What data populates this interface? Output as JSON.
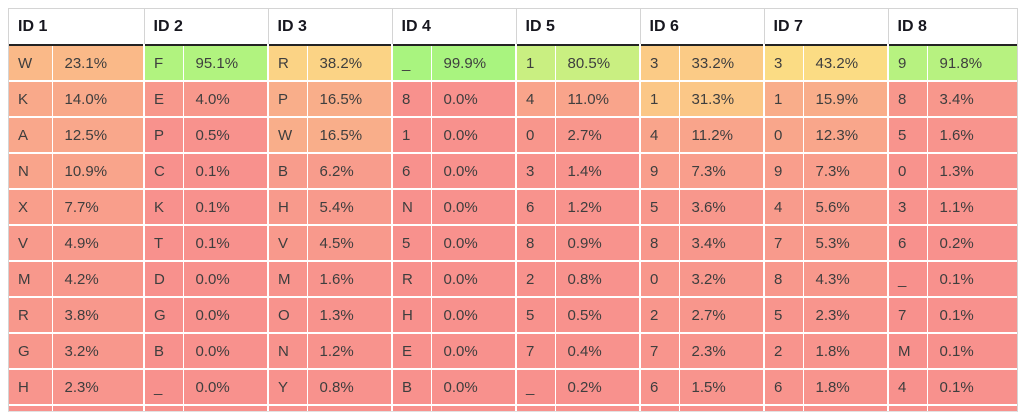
{
  "chart_data": {
    "type": "heatmap",
    "title": "",
    "layout": "8 column groups (character + probability), 10 ranked rows each, descending; 11th row clipped at bottom edge",
    "columns": [
      {
        "header": "ID 1",
        "cells": [
          {
            "char": "W",
            "pct": "23.1%"
          },
          {
            "char": "K",
            "pct": "14.0%"
          },
          {
            "char": "A",
            "pct": "12.5%"
          },
          {
            "char": "N",
            "pct": "10.9%"
          },
          {
            "char": "X",
            "pct": "7.7%"
          },
          {
            "char": "V",
            "pct": "4.9%"
          },
          {
            "char": "M",
            "pct": "4.2%"
          },
          {
            "char": "R",
            "pct": "3.8%"
          },
          {
            "char": "G",
            "pct": "3.2%"
          },
          {
            "char": "H",
            "pct": "2.3%"
          }
        ]
      },
      {
        "header": "ID 2",
        "cells": [
          {
            "char": "F",
            "pct": "95.1%"
          },
          {
            "char": "E",
            "pct": "4.0%"
          },
          {
            "char": "P",
            "pct": "0.5%"
          },
          {
            "char": "C",
            "pct": "0.1%"
          },
          {
            "char": "K",
            "pct": "0.1%"
          },
          {
            "char": "T",
            "pct": "0.1%"
          },
          {
            "char": "D",
            "pct": "0.0%"
          },
          {
            "char": "G",
            "pct": "0.0%"
          },
          {
            "char": "B",
            "pct": "0.0%"
          },
          {
            "char": "_",
            "pct": "0.0%"
          }
        ]
      },
      {
        "header": "ID 3",
        "cells": [
          {
            "char": "R",
            "pct": "38.2%"
          },
          {
            "char": "P",
            "pct": "16.5%"
          },
          {
            "char": "W",
            "pct": "16.5%"
          },
          {
            "char": "B",
            "pct": "6.2%"
          },
          {
            "char": "H",
            "pct": "5.4%"
          },
          {
            "char": "V",
            "pct": "4.5%"
          },
          {
            "char": "M",
            "pct": "1.6%"
          },
          {
            "char": "O",
            "pct": "1.3%"
          },
          {
            "char": "N",
            "pct": "1.2%"
          },
          {
            "char": "Y",
            "pct": "0.8%"
          }
        ]
      },
      {
        "header": "ID 4",
        "cells": [
          {
            "char": "_",
            "pct": "99.9%"
          },
          {
            "char": "8",
            "pct": "0.0%"
          },
          {
            "char": "1",
            "pct": "0.0%"
          },
          {
            "char": "6",
            "pct": "0.0%"
          },
          {
            "char": "N",
            "pct": "0.0%"
          },
          {
            "char": "5",
            "pct": "0.0%"
          },
          {
            "char": "R",
            "pct": "0.0%"
          },
          {
            "char": "H",
            "pct": "0.0%"
          },
          {
            "char": "E",
            "pct": "0.0%"
          },
          {
            "char": "B",
            "pct": "0.0%"
          }
        ]
      },
      {
        "header": "ID 5",
        "cells": [
          {
            "char": "1",
            "pct": "80.5%"
          },
          {
            "char": "4",
            "pct": "11.0%"
          },
          {
            "char": "0",
            "pct": "2.7%"
          },
          {
            "char": "3",
            "pct": "1.4%"
          },
          {
            "char": "6",
            "pct": "1.2%"
          },
          {
            "char": "8",
            "pct": "0.9%"
          },
          {
            "char": "2",
            "pct": "0.8%"
          },
          {
            "char": "5",
            "pct": "0.5%"
          },
          {
            "char": "7",
            "pct": "0.4%"
          },
          {
            "char": "_",
            "pct": "0.2%"
          }
        ]
      },
      {
        "header": "ID 6",
        "cells": [
          {
            "char": "3",
            "pct": "33.2%"
          },
          {
            "char": "1",
            "pct": "31.3%"
          },
          {
            "char": "4",
            "pct": "11.2%"
          },
          {
            "char": "9",
            "pct": "7.3%"
          },
          {
            "char": "5",
            "pct": "3.6%"
          },
          {
            "char": "8",
            "pct": "3.4%"
          },
          {
            "char": "0",
            "pct": "3.2%"
          },
          {
            "char": "2",
            "pct": "2.7%"
          },
          {
            "char": "7",
            "pct": "2.3%"
          },
          {
            "char": "6",
            "pct": "1.5%"
          }
        ]
      },
      {
        "header": "ID 7",
        "cells": [
          {
            "char": "3",
            "pct": "43.2%"
          },
          {
            "char": "1",
            "pct": "15.9%"
          },
          {
            "char": "0",
            "pct": "12.3%"
          },
          {
            "char": "9",
            "pct": "7.3%"
          },
          {
            "char": "4",
            "pct": "5.6%"
          },
          {
            "char": "7",
            "pct": "5.3%"
          },
          {
            "char": "8",
            "pct": "4.3%"
          },
          {
            "char": "5",
            "pct": "2.3%"
          },
          {
            "char": "2",
            "pct": "1.8%"
          },
          {
            "char": "6",
            "pct": "1.8%"
          }
        ]
      },
      {
        "header": "ID 8",
        "cells": [
          {
            "char": "9",
            "pct": "91.8%"
          },
          {
            "char": "8",
            "pct": "3.4%"
          },
          {
            "char": "5",
            "pct": "1.6%"
          },
          {
            "char": "0",
            "pct": "1.3%"
          },
          {
            "char": "3",
            "pct": "1.1%"
          },
          {
            "char": "6",
            "pct": "0.2%"
          },
          {
            "char": "_",
            "pct": "0.1%"
          },
          {
            "char": "7",
            "pct": "0.1%"
          },
          {
            "char": "M",
            "pct": "0.1%"
          },
          {
            "char": "4",
            "pct": "0.1%"
          }
        ]
      }
    ],
    "colormap": {
      "low": "#f8918d",
      "mid": "#fce883",
      "high": "#a9f47f"
    },
    "clipped_partial_row": true
  }
}
